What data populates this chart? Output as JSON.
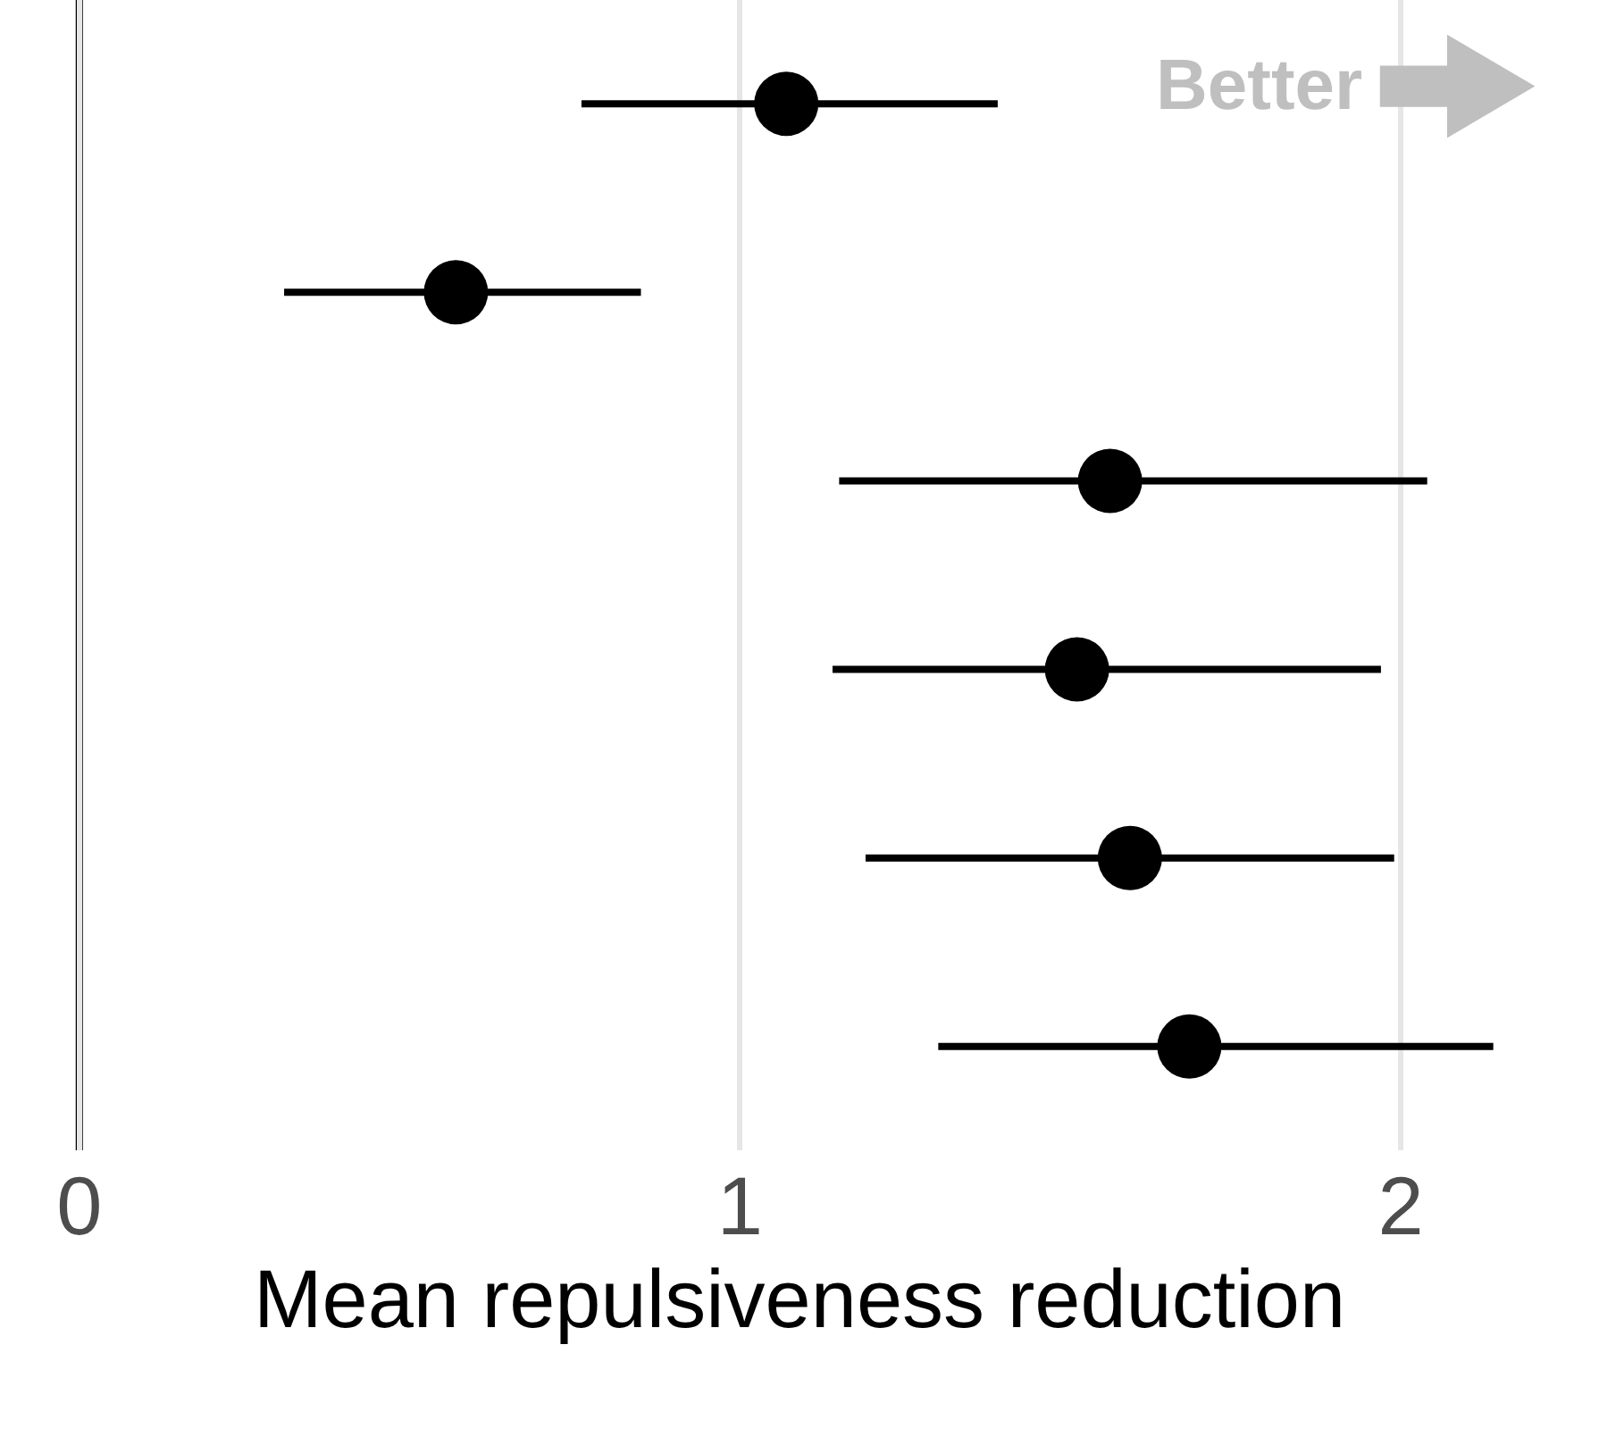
{
  "chart_data": {
    "type": "scatter",
    "orientation": "horizontal",
    "xlabel": "Mean repulsiveness reduction",
    "categories": [
      null,
      null,
      null,
      null,
      null,
      null
    ],
    "values": [
      1.07,
      0.57,
      1.56,
      1.51,
      1.59,
      1.68
    ],
    "errors": [
      [
        0.76,
        1.39
      ],
      [
        0.31,
        0.85
      ],
      [
        1.15,
        2.04
      ],
      [
        1.14,
        1.97
      ],
      [
        1.19,
        1.99
      ],
      [
        1.3,
        2.14
      ]
    ],
    "color": "#000000",
    "marker": "circle",
    "xlim": [
      -0.12,
      2.3
    ],
    "xticks": [
      0,
      1,
      2
    ],
    "grid": "x",
    "tick_labels": "x",
    "ref_lines": [
      {
        "axis": "x",
        "value": 0,
        "color": "#000000"
      }
    ],
    "annotations": [
      "Better"
    ]
  }
}
